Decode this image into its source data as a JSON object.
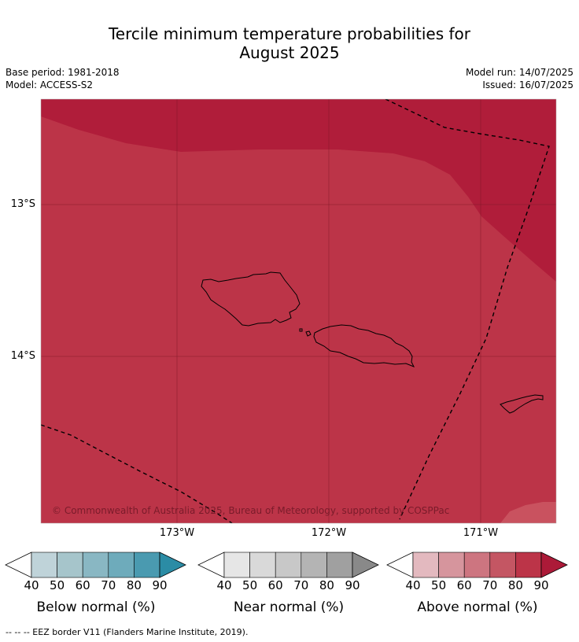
{
  "title_line1": "Tercile minimum temperature probabilities for",
  "title_line2": "August 2025",
  "meta": {
    "base_period": "Base period: 1981-2018",
    "model": "Model: ACCESS-S2",
    "model_run": "Model run: 14/07/2025",
    "issued": "Issued: 16/07/2025"
  },
  "map": {
    "copyright": "© Commonwealth of Australia 2025, Bureau of Meteorology, supported by COSPPac",
    "lon_labels": [
      "173°W",
      "172°W",
      "171°W"
    ],
    "lat_labels": [
      "13°S",
      "14°S"
    ],
    "colors": {
      "above_80_90": "#bc3448",
      "above_90_plus": "#b01d3a",
      "above_70_80": "#c9525f"
    }
  },
  "colorbars": [
    {
      "label": "Below normal (%)",
      "ticks": [
        "40",
        "50",
        "60",
        "70",
        "80",
        "90"
      ],
      "colors": [
        "#bfd3d9",
        "#a6c5cb",
        "#89b7c3",
        "#6eabbb",
        "#4a9ab0",
        "#2b8ca5"
      ]
    },
    {
      "label": "Near normal (%)",
      "ticks": [
        "40",
        "50",
        "60",
        "70",
        "80",
        "90"
      ],
      "colors": [
        "#e6e6e6",
        "#d9d9d9",
        "#c8c8c8",
        "#b4b4b4",
        "#a0a0a0",
        "#898989"
      ]
    },
    {
      "label": "Above normal (%)",
      "ticks": [
        "40",
        "50",
        "60",
        "70",
        "80",
        "90"
      ],
      "colors": [
        "#e3b9bf",
        "#d6959d",
        "#cd7580",
        "#c45663",
        "#bc3448",
        "#ac1a38"
      ]
    }
  ],
  "footer": "--  --  -- EEZ border V11 (Flanders Marine Institute, 2019)."
}
